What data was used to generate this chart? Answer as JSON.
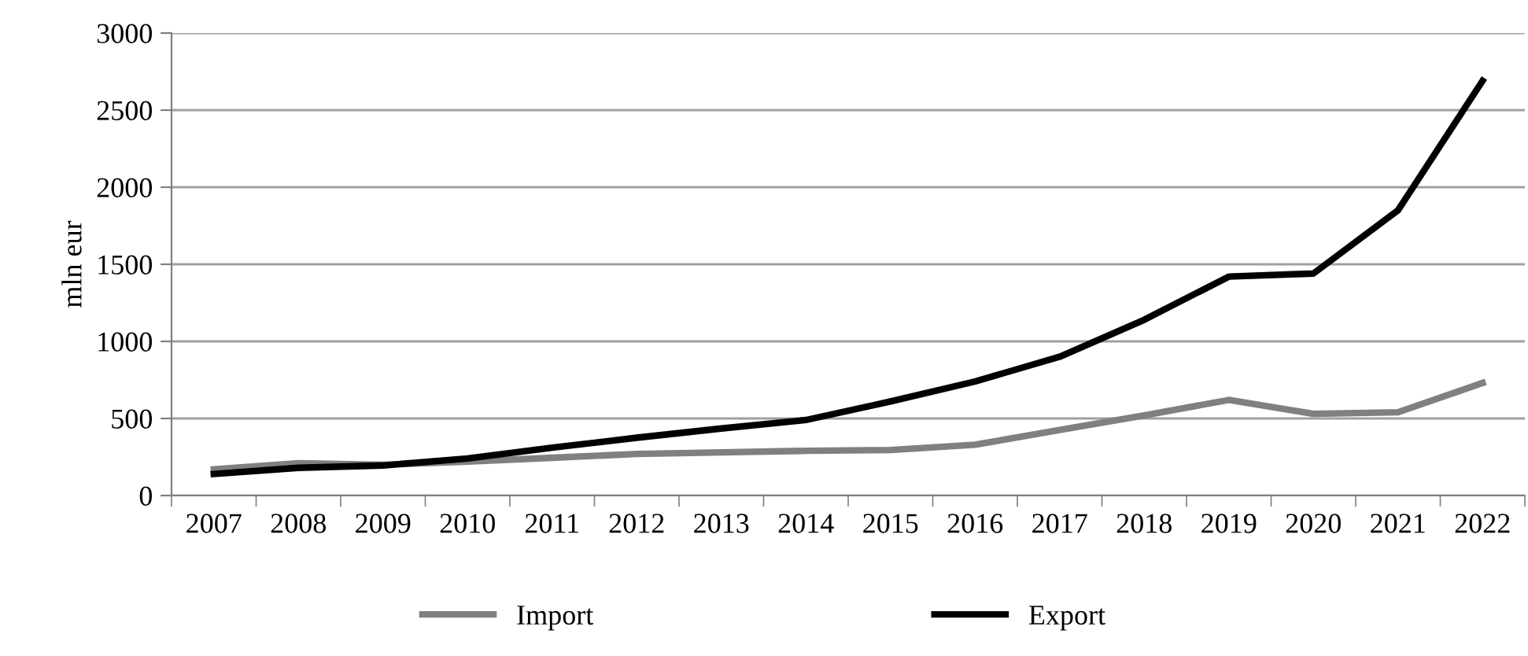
{
  "chart_data": {
    "type": "line",
    "ylabel": "mln eur",
    "categories": [
      "2007",
      "2008",
      "2009",
      "2010",
      "2011",
      "2012",
      "2013",
      "2014",
      "2015",
      "2016",
      "2017",
      "2018",
      "2019",
      "2020",
      "2021",
      "2022"
    ],
    "series": [
      {
        "name": "Import",
        "color": "#808080",
        "values": [
          170,
          210,
          200,
          220,
          245,
          270,
          280,
          290,
          295,
          330,
          425,
          520,
          620,
          530,
          540,
          730
        ]
      },
      {
        "name": "Export",
        "color": "#000000",
        "values": [
          140,
          180,
          195,
          240,
          310,
          375,
          435,
          490,
          610,
          740,
          900,
          1140,
          1420,
          1440,
          1850,
          2690
        ]
      }
    ],
    "ylim": [
      0,
      3000
    ],
    "yticks": [
      0,
      500,
      1000,
      1500,
      2000,
      2500,
      3000
    ],
    "grid": "y",
    "legend": "bottom",
    "marker": "none",
    "line_style": "solid"
  }
}
